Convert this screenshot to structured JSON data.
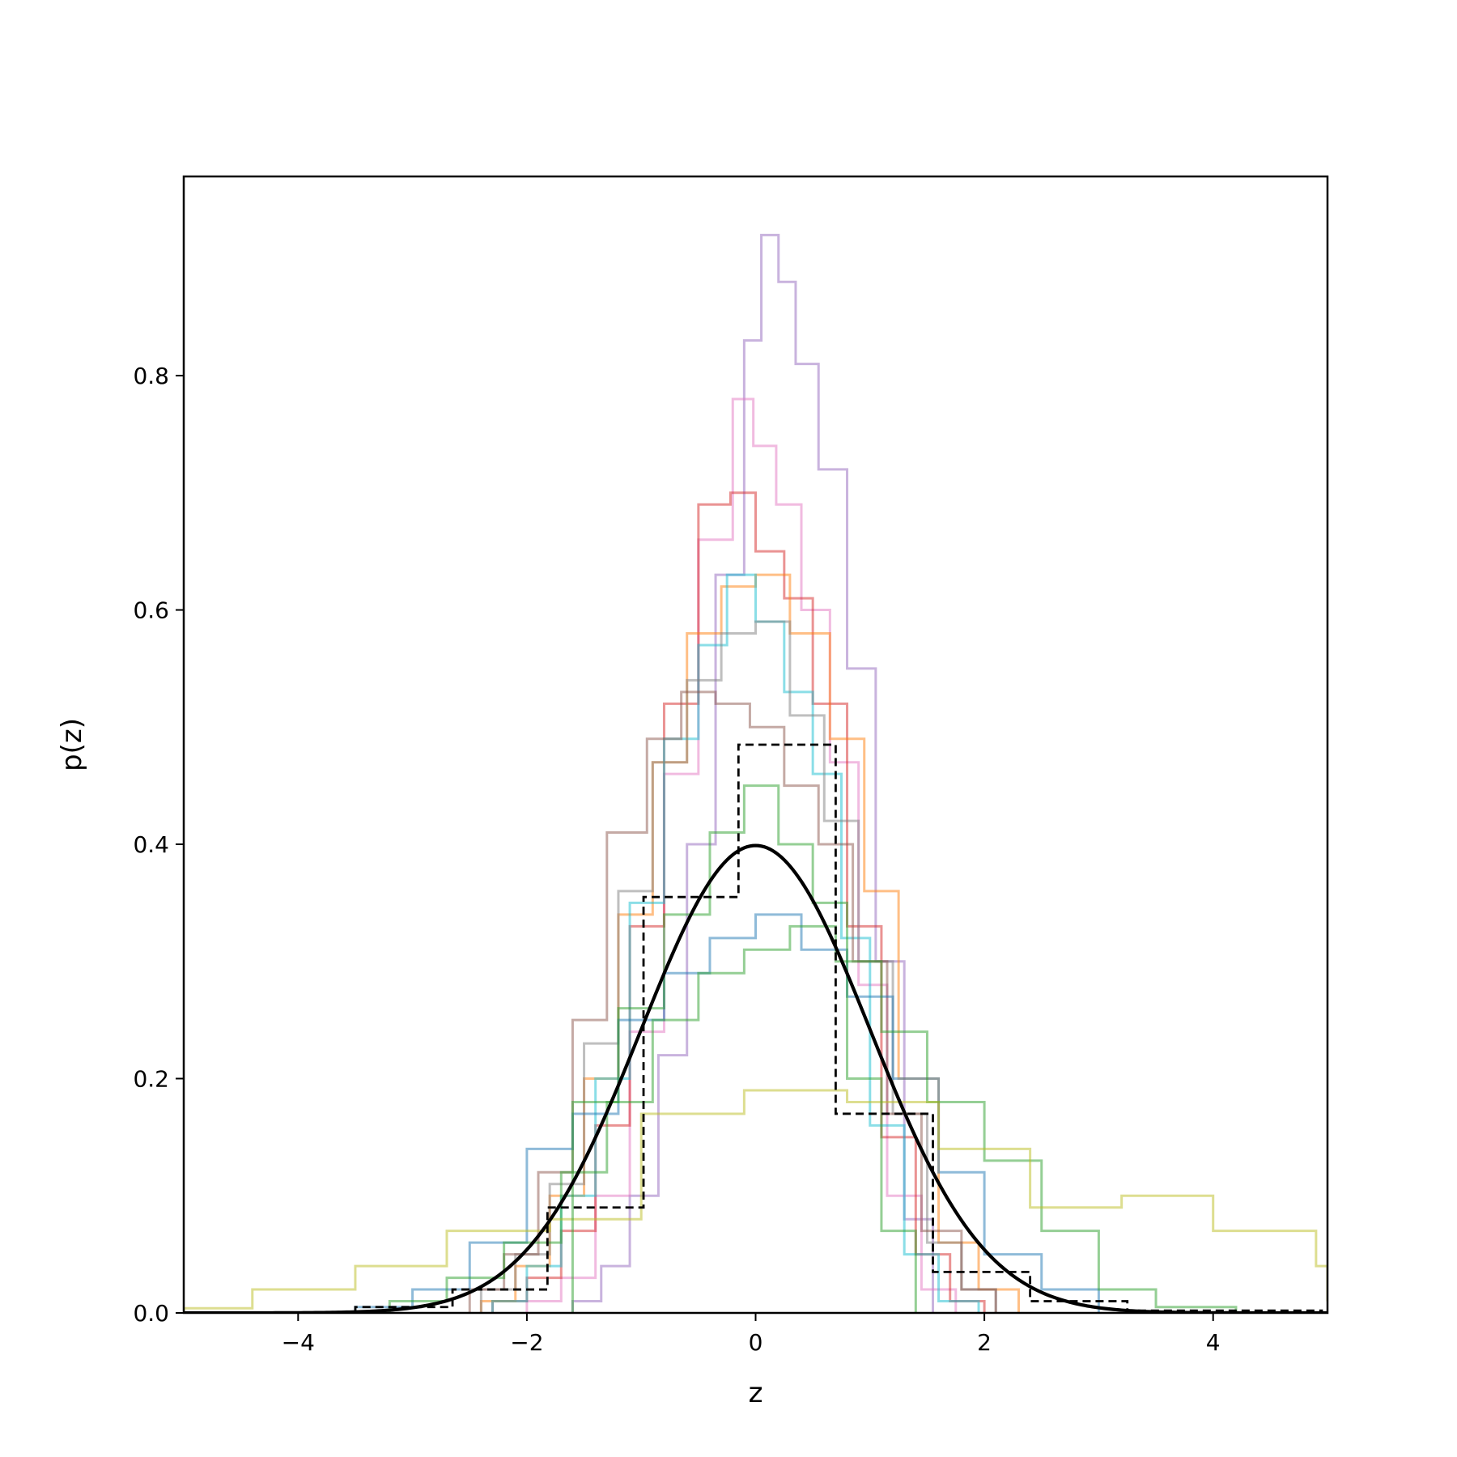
{
  "chart_data": {
    "type": "line",
    "title": "",
    "xlabel": "z",
    "ylabel": "p(z)",
    "xlim": [
      -5,
      5
    ],
    "ylim": [
      0,
      0.97
    ],
    "xticks": [
      -4,
      -2,
      0,
      2,
      4
    ],
    "xtick_labels": [
      "−4",
      "−2",
      "0",
      "2",
      "4"
    ],
    "yticks": [
      0.0,
      0.2,
      0.4,
      0.6,
      0.8
    ],
    "ytick_labels": [
      "0.0",
      "0.2",
      "0.4",
      "0.6",
      "0.8"
    ],
    "grid": false,
    "legend": "none",
    "series": [
      {
        "kind": "step-hist",
        "color": "#9467bd",
        "edges": [
          -1.6,
          -1.35,
          -1.1,
          -0.85,
          -0.6,
          -0.35,
          -0.1,
          0.05,
          0.2,
          0.35,
          0.55,
          0.8,
          1.05,
          1.3,
          1.55
        ],
        "values": [
          0.01,
          0.04,
          0.1,
          0.22,
          0.4,
          0.63,
          0.83,
          0.92,
          0.88,
          0.81,
          0.72,
          0.55,
          0.3,
          0.08
        ]
      },
      {
        "kind": "step-hist",
        "color": "#e377c2",
        "edges": [
          -2.0,
          -1.7,
          -1.4,
          -1.1,
          -0.8,
          -0.5,
          -0.2,
          -0.02,
          0.18,
          0.4,
          0.65,
          0.9,
          1.15,
          1.45,
          1.75
        ],
        "values": [
          0.01,
          0.03,
          0.1,
          0.24,
          0.46,
          0.66,
          0.78,
          0.74,
          0.69,
          0.6,
          0.47,
          0.28,
          0.1,
          0.02
        ]
      },
      {
        "kind": "step-hist",
        "color": "#d62728",
        "edges": [
          -2.3,
          -2.0,
          -1.7,
          -1.4,
          -1.1,
          -0.8,
          -0.5,
          -0.22,
          0.0,
          0.25,
          0.5,
          0.8,
          1.1,
          1.4,
          1.7,
          2.0
        ],
        "values": [
          0.01,
          0.03,
          0.07,
          0.16,
          0.33,
          0.52,
          0.69,
          0.7,
          0.65,
          0.61,
          0.52,
          0.33,
          0.15,
          0.05,
          0.01
        ]
      },
      {
        "kind": "step-hist",
        "color": "#ff7f0e",
        "edges": [
          -2.4,
          -2.1,
          -1.8,
          -1.5,
          -1.2,
          -0.9,
          -0.6,
          -0.3,
          0.0,
          0.3,
          0.65,
          0.95,
          1.25,
          1.6,
          1.95,
          2.3
        ],
        "values": [
          0.01,
          0.04,
          0.1,
          0.2,
          0.34,
          0.47,
          0.58,
          0.62,
          0.63,
          0.58,
          0.49,
          0.36,
          0.2,
          0.06,
          0.02
        ]
      },
      {
        "kind": "step-hist",
        "color": "#17becf",
        "edges": [
          -2.3,
          -2.0,
          -1.7,
          -1.4,
          -1.1,
          -0.8,
          -0.5,
          -0.25,
          0.0,
          0.25,
          0.5,
          0.75,
          1.0,
          1.3,
          1.6,
          1.95
        ],
        "values": [
          0.01,
          0.04,
          0.1,
          0.2,
          0.35,
          0.49,
          0.57,
          0.63,
          0.59,
          0.53,
          0.46,
          0.32,
          0.16,
          0.05,
          0.01
        ]
      },
      {
        "kind": "step-hist",
        "color": "#7f7f7f",
        "edges": [
          -2.4,
          -2.1,
          -1.8,
          -1.5,
          -1.2,
          -0.9,
          -0.6,
          -0.3,
          0.0,
          0.3,
          0.6,
          0.9,
          1.2,
          1.5,
          1.8,
          2.1
        ],
        "values": [
          0.02,
          0.05,
          0.11,
          0.23,
          0.36,
          0.47,
          0.54,
          0.58,
          0.59,
          0.51,
          0.42,
          0.3,
          0.17,
          0.06,
          0.02
        ]
      },
      {
        "kind": "step-hist",
        "color": "#8c564b",
        "edges": [
          -2.5,
          -2.2,
          -1.9,
          -1.6,
          -1.3,
          -0.95,
          -0.65,
          -0.35,
          -0.05,
          0.25,
          0.55,
          0.85,
          1.15,
          1.45,
          1.8,
          2.1
        ],
        "values": [
          0.02,
          0.05,
          0.12,
          0.25,
          0.41,
          0.49,
          0.53,
          0.52,
          0.5,
          0.45,
          0.4,
          0.3,
          0.17,
          0.07,
          0.02
        ]
      },
      {
        "kind": "step-hist",
        "color": "#1f77b4",
        "edges": [
          -3.5,
          -3.0,
          -2.5,
          -2.0,
          -1.6,
          -1.2,
          -0.8,
          -0.4,
          0.0,
          0.4,
          0.8,
          1.2,
          1.6,
          2.0,
          2.5,
          3.0
        ],
        "values": [
          0.005,
          0.02,
          0.06,
          0.14,
          0.17,
          0.25,
          0.29,
          0.32,
          0.34,
          0.31,
          0.27,
          0.2,
          0.12,
          0.05,
          0.02
        ]
      },
      {
        "kind": "step-hist",
        "color": "#2ca02c",
        "edges": [
          -3.2,
          -2.7,
          -2.2,
          -1.7,
          -1.3,
          -0.9,
          -0.5,
          -0.1,
          0.3,
          0.7,
          1.1,
          1.5,
          2.0,
          2.5,
          3.0,
          3.5,
          4.2
        ],
        "values": [
          0.01,
          0.03,
          0.06,
          0.12,
          0.18,
          0.25,
          0.29,
          0.31,
          0.33,
          0.3,
          0.24,
          0.18,
          0.13,
          0.07,
          0.02,
          0.005
        ]
      },
      {
        "kind": "step-hist",
        "color": "#bcbd22",
        "edges": [
          -5.0,
          -4.4,
          -3.5,
          -2.7,
          -1.8,
          -1.0,
          -0.1,
          0.8,
          1.6,
          2.4,
          3.2,
          4.0,
          4.9,
          5.0
        ],
        "values": [
          0.004,
          0.02,
          0.04,
          0.07,
          0.08,
          0.17,
          0.19,
          0.18,
          0.14,
          0.09,
          0.1,
          0.07,
          0.04,
          0.01
        ]
      },
      {
        "kind": "step-hist",
        "color": "#2ca02c",
        "edges": [
          -1.6,
          -1.2,
          -0.8,
          -0.4,
          -0.1,
          0.2,
          0.5,
          0.8,
          1.1,
          1.4
        ],
        "values": [
          0.18,
          0.26,
          0.34,
          0.41,
          0.45,
          0.4,
          0.35,
          0.2,
          0.07
        ]
      },
      {
        "kind": "step-hist",
        "color": "#000000",
        "dashed": true,
        "edges": [
          -3.5,
          -2.65,
          -1.82,
          -0.98,
          -0.15,
          0.7,
          1.55,
          2.4,
          3.25,
          4.95
        ],
        "values": [
          0.005,
          0.02,
          0.09,
          0.355,
          0.485,
          0.17,
          0.035,
          0.01,
          0.002
        ]
      },
      {
        "kind": "normal-pdf",
        "color": "#000000",
        "mean": 0,
        "std": 1
      }
    ]
  }
}
